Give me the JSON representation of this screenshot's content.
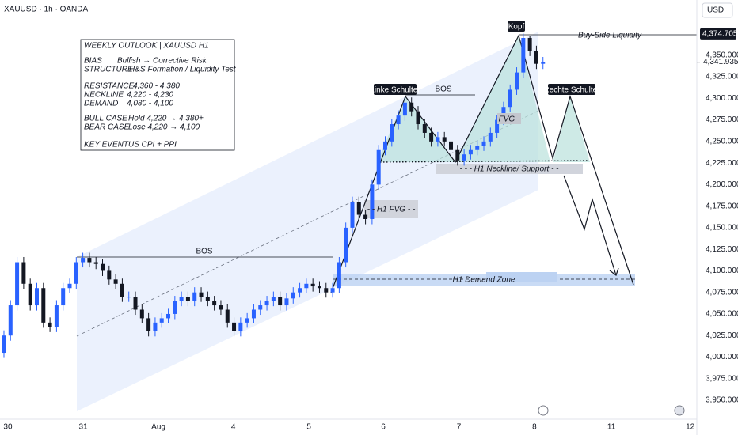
{
  "chart_data": {
    "type": "candlestick",
    "title": "XAUUSD · 1h · OANDA",
    "currency": "USD",
    "up_color": "#2962ff",
    "down_color": "#131722",
    "grid": false,
    "ylim": [
      3928,
      4414
    ],
    "yticks": [
      {
        "value": 4350,
        "label": "4,350.000"
      },
      {
        "value": 4325,
        "label": "4,325.000"
      },
      {
        "value": 4300,
        "label": "4,300.000"
      },
      {
        "value": 4275,
        "label": "4,275.000"
      },
      {
        "value": 4250,
        "label": "4,250.000"
      },
      {
        "value": 4225,
        "label": "4,225.000"
      },
      {
        "value": 4200,
        "label": "4,200.000"
      },
      {
        "value": 4175,
        "label": "4,175.000"
      },
      {
        "value": 4150,
        "label": "4,150.000"
      },
      {
        "value": 4125,
        "label": "4,125.000"
      },
      {
        "value": 4100,
        "label": "4,100.000"
      },
      {
        "value": 4075,
        "label": "4,075.000"
      },
      {
        "value": 4050,
        "label": "4,050.000"
      },
      {
        "value": 4025,
        "label": "4,025.000"
      },
      {
        "value": 4000,
        "label": "4,000.000"
      },
      {
        "value": 3975,
        "label": "3,975.000"
      },
      {
        "value": 3950,
        "label": "3,950.000"
      }
    ],
    "xlim": [
      0,
      106
    ],
    "xticks": [
      {
        "value": 1.2,
        "label": "30"
      },
      {
        "value": 12.65,
        "label": "31"
      },
      {
        "value": 24.1,
        "label": "Aug"
      },
      {
        "value": 35.5,
        "label": "4"
      },
      {
        "value": 47,
        "label": "5"
      },
      {
        "value": 58.3,
        "label": "6"
      },
      {
        "value": 69.8,
        "label": "7"
      },
      {
        "value": 81.3,
        "label": "8"
      },
      {
        "value": 93,
        "label": "11"
      },
      {
        "value": 105,
        "label": "12"
      }
    ],
    "open": [
      4005,
      4025,
      4060,
      4110,
      4085,
      4060,
      4080,
      4040,
      4035,
      4060,
      4080,
      4085,
      4110,
      4115,
      4110,
      4108,
      4100,
      4090,
      4085,
      4070,
      4070,
      4055,
      4045,
      4030,
      4040,
      4045,
      4050,
      4065,
      4070,
      4065,
      4075,
      4070,
      4065,
      4060,
      4055,
      4040,
      4030,
      4040,
      4045,
      4055,
      4060,
      4065,
      4070,
      4060,
      4068,
      4075,
      4080,
      4085,
      4082,
      4080,
      4075,
      4080,
      4110,
      4150,
      4180,
      4165,
      4160,
      4200,
      4240,
      4250,
      4270,
      4280,
      4295,
      4285,
      4270,
      4260,
      4250,
      4255,
      4250,
      4240,
      4228,
      4235,
      4240,
      4245,
      4250,
      4260,
      4275,
      4290,
      4310,
      4330,
      4370,
      4355,
      4340
    ],
    "high": [
      4031,
      4066,
      4116,
      4116,
      4091,
      4086,
      4086,
      4046,
      4066,
      4086,
      4091,
      4116,
      4121,
      4121,
      4116,
      4114,
      4106,
      4096,
      4091,
      4076,
      4076,
      4061,
      4051,
      4046,
      4051,
      4056,
      4071,
      4076,
      4076,
      4081,
      4081,
      4076,
      4071,
      4066,
      4061,
      4046,
      4046,
      4051,
      4061,
      4066,
      4071,
      4076,
      4076,
      4074,
      4081,
      4086,
      4091,
      4091,
      4088,
      4086,
      4086,
      4116,
      4156,
      4186,
      4186,
      4171,
      4206,
      4246,
      4256,
      4276,
      4286,
      4301,
      4301,
      4291,
      4276,
      4266,
      4261,
      4261,
      4256,
      4246,
      4241,
      4246,
      4251,
      4256,
      4266,
      4281,
      4296,
      4316,
      4336,
      4375,
      4372,
      4361,
      4348
    ],
    "low": [
      3999,
      4019,
      4054,
      4079,
      4054,
      4054,
      4034,
      4029,
      4029,
      4054,
      4074,
      4079,
      4104,
      4104,
      4102,
      4094,
      4084,
      4079,
      4064,
      4064,
      4049,
      4039,
      4024,
      4024,
      4034,
      4039,
      4044,
      4059,
      4059,
      4059,
      4064,
      4059,
      4054,
      4049,
      4034,
      4024,
      4024,
      4034,
      4039,
      4049,
      4054,
      4059,
      4054,
      4054,
      4062,
      4069,
      4074,
      4076,
      4074,
      4069,
      4069,
      4074,
      4104,
      4144,
      4159,
      4154,
      4154,
      4194,
      4234,
      4244,
      4264,
      4274,
      4279,
      4264,
      4254,
      4244,
      4244,
      4244,
      4234,
      4222,
      4222,
      4229,
      4234,
      4239,
      4244,
      4254,
      4269,
      4284,
      4304,
      4324,
      4349,
      4334,
      4334
    ],
    "close": [
      4025,
      4060,
      4110,
      4085,
      4060,
      4080,
      4040,
      4035,
      4060,
      4080,
      4085,
      4110,
      4115,
      4110,
      4108,
      4100,
      4090,
      4085,
      4070,
      4070,
      4055,
      4045,
      4030,
      4040,
      4045,
      4050,
      4065,
      4070,
      4065,
      4075,
      4070,
      4065,
      4060,
      4055,
      4040,
      4030,
      4040,
      4045,
      4055,
      4060,
      4065,
      4070,
      4060,
      4068,
      4075,
      4080,
      4085,
      4082,
      4080,
      4075,
      4080,
      4110,
      4150,
      4180,
      4165,
      4160,
      4200,
      4240,
      4250,
      4270,
      4280,
      4295,
      4285,
      4270,
      4260,
      4250,
      4255,
      4250,
      4240,
      4228,
      4235,
      4240,
      4245,
      4250,
      4260,
      4275,
      4290,
      4310,
      4330,
      4370,
      4355,
      4340,
      4342
    ],
    "high_marker": {
      "value": 4374.705,
      "label": "4,374.705"
    },
    "last_price": {
      "value": 4341.935,
      "label": "4,341.935"
    },
    "annotations": {
      "head": "Kopf",
      "left_shoulder": "Linke Schulter",
      "right_shoulder": "Rechte Schulter",
      "bos_1": "BOS",
      "bos_2": "BOS",
      "buy_side": "Buy-Side Liquidity",
      "fvg": "FVG -",
      "h1_fvg": "- - H1 FVG - -",
      "neckline": "- - - H1 Neckline/ Support - -",
      "demand_zone": "H1 Demand Zone"
    },
    "info_box": {
      "title": "WEEKLY OUTLOOK | XAUUSD H1",
      "rows": [
        [
          "BIAS",
          "Bullish → Corrective Risk"
        ],
        [
          "STRUCTURE",
          "H&S Formation / Liquidity Test"
        ],
        [
          "RESISTANCE",
          "4,360 - 4,380"
        ],
        [
          "NECKLINE",
          "4,220 - 4,230"
        ],
        [
          "DEMAND",
          "4,080 - 4,100"
        ],
        [
          "BULL CASE",
          "Hold 4,220 → 4,380+"
        ],
        [
          "BEAR CASE",
          "Lose 4,220 → 4,100"
        ],
        [
          "KEY EVENT",
          "US CPI + PPI"
        ]
      ]
    }
  }
}
